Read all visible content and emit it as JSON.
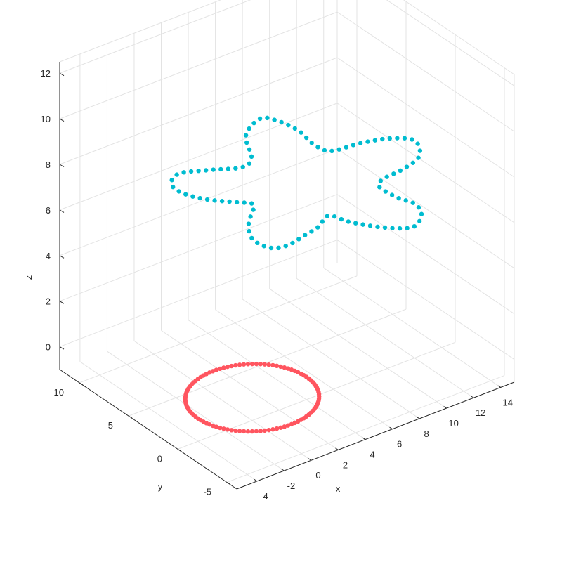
{
  "chart_data": {
    "type": "scatter",
    "dimensions": 3,
    "title": "",
    "xlabel": "x",
    "ylabel": "y",
    "zlabel": "z",
    "xlim": [
      -5.5,
      15
    ],
    "ylim": [
      -6,
      12
    ],
    "zlim": [
      -1,
      12.5
    ],
    "xticks": [
      -4,
      -2,
      0,
      2,
      4,
      6,
      8,
      10,
      12,
      14
    ],
    "yticks": [
      -5,
      0,
      5,
      10
    ],
    "zticks": [
      0,
      2,
      4,
      6,
      8,
      10,
      12
    ],
    "grid": true,
    "series": [
      {
        "marker": "filled-circle",
        "color": "#ff555f",
        "shape": "circle",
        "center": [
          0,
          0,
          0
        ],
        "radius": 4,
        "count": 100
      },
      {
        "marker": "filled-circle",
        "color": "#00bcd0",
        "shape": "four-lobed closed curve",
        "z": 12,
        "count": 100
      }
    ]
  }
}
